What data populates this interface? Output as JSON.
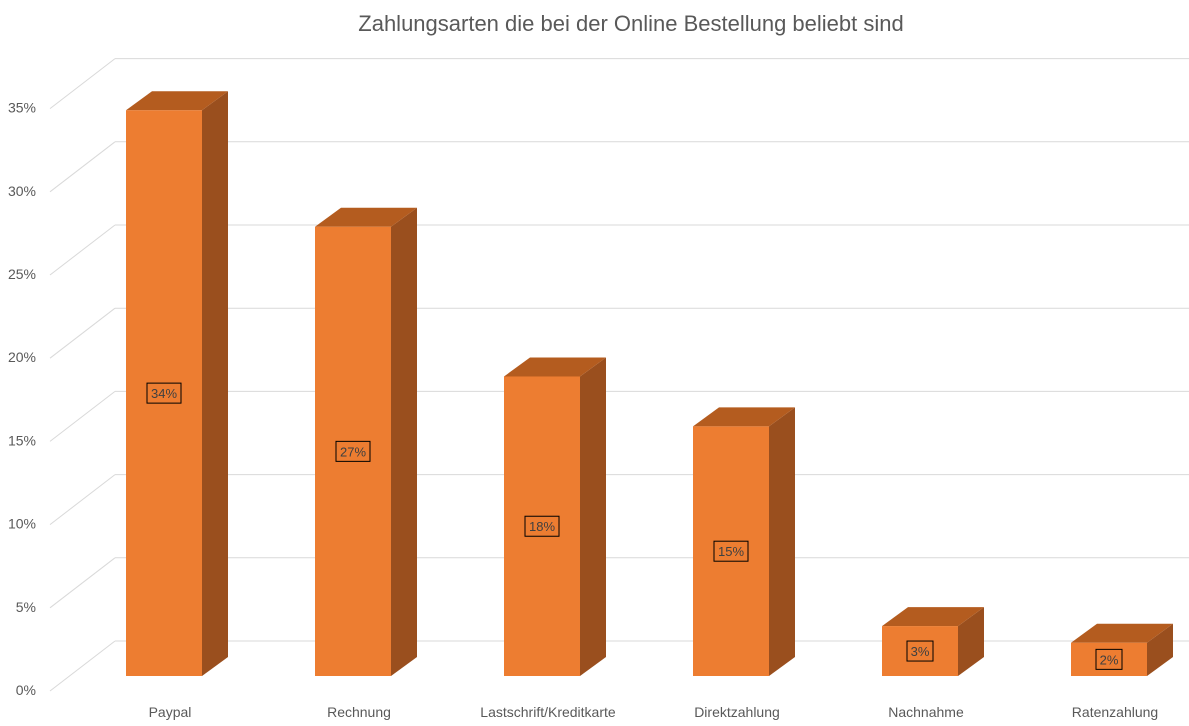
{
  "chart_data": {
    "type": "bar",
    "title": "Zahlungsarten die bei der Online Bestellung beliebt sind",
    "xlabel": "",
    "ylabel": "",
    "categories": [
      "Paypal",
      "Rechnung",
      "Lastschrift/Kreditkarte",
      "Direktzahlung",
      "Nachnahme",
      "Ratenzahlung"
    ],
    "values": [
      34,
      27,
      18,
      15,
      3,
      2
    ],
    "data_labels": [
      "34%",
      "27%",
      "18%",
      "15%",
      "3%",
      "2%"
    ],
    "yticks": [
      "0%",
      "5%",
      "10%",
      "15%",
      "20%",
      "25%",
      "30%",
      "35%"
    ],
    "ylim": [
      0,
      35
    ],
    "grid": true,
    "legend": false,
    "style": "3d-column",
    "colors": {
      "front": "#ED7D31",
      "top": "#B45C1F",
      "side": "#9A4F1E",
      "grid": "#D9D9D9",
      "text": "#595959"
    }
  }
}
